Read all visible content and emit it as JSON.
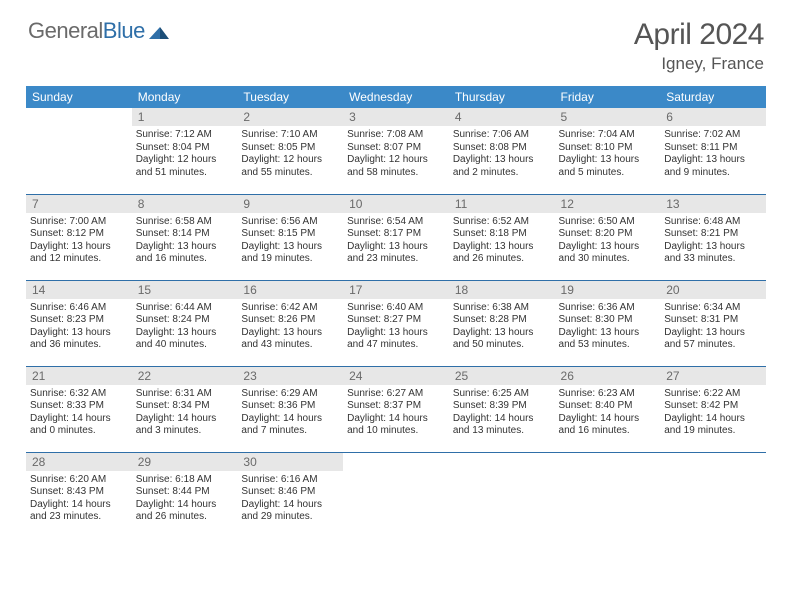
{
  "brand": {
    "part1": "General",
    "part2": "Blue"
  },
  "title": "April 2024",
  "location": "Igney, France",
  "colors": {
    "header_bg": "#3b89c8",
    "header_text": "#ffffff",
    "daynum_bg": "#e7e7e7",
    "daynum_text": "#6a6a6a",
    "rule": "#2f6fa8",
    "brand_gray": "#6a6a6a",
    "brand_blue": "#2f6fa8"
  },
  "weekdays": [
    "Sunday",
    "Monday",
    "Tuesday",
    "Wednesday",
    "Thursday",
    "Friday",
    "Saturday"
  ],
  "start_offset": 1,
  "days": [
    {
      "n": 1,
      "sunrise": "7:12 AM",
      "sunset": "8:04 PM",
      "daylight": "12 hours and 51 minutes."
    },
    {
      "n": 2,
      "sunrise": "7:10 AM",
      "sunset": "8:05 PM",
      "daylight": "12 hours and 55 minutes."
    },
    {
      "n": 3,
      "sunrise": "7:08 AM",
      "sunset": "8:07 PM",
      "daylight": "12 hours and 58 minutes."
    },
    {
      "n": 4,
      "sunrise": "7:06 AM",
      "sunset": "8:08 PM",
      "daylight": "13 hours and 2 minutes."
    },
    {
      "n": 5,
      "sunrise": "7:04 AM",
      "sunset": "8:10 PM",
      "daylight": "13 hours and 5 minutes."
    },
    {
      "n": 6,
      "sunrise": "7:02 AM",
      "sunset": "8:11 PM",
      "daylight": "13 hours and 9 minutes."
    },
    {
      "n": 7,
      "sunrise": "7:00 AM",
      "sunset": "8:12 PM",
      "daylight": "13 hours and 12 minutes."
    },
    {
      "n": 8,
      "sunrise": "6:58 AM",
      "sunset": "8:14 PM",
      "daylight": "13 hours and 16 minutes."
    },
    {
      "n": 9,
      "sunrise": "6:56 AM",
      "sunset": "8:15 PM",
      "daylight": "13 hours and 19 minutes."
    },
    {
      "n": 10,
      "sunrise": "6:54 AM",
      "sunset": "8:17 PM",
      "daylight": "13 hours and 23 minutes."
    },
    {
      "n": 11,
      "sunrise": "6:52 AM",
      "sunset": "8:18 PM",
      "daylight": "13 hours and 26 minutes."
    },
    {
      "n": 12,
      "sunrise": "6:50 AM",
      "sunset": "8:20 PM",
      "daylight": "13 hours and 30 minutes."
    },
    {
      "n": 13,
      "sunrise": "6:48 AM",
      "sunset": "8:21 PM",
      "daylight": "13 hours and 33 minutes."
    },
    {
      "n": 14,
      "sunrise": "6:46 AM",
      "sunset": "8:23 PM",
      "daylight": "13 hours and 36 minutes."
    },
    {
      "n": 15,
      "sunrise": "6:44 AM",
      "sunset": "8:24 PM",
      "daylight": "13 hours and 40 minutes."
    },
    {
      "n": 16,
      "sunrise": "6:42 AM",
      "sunset": "8:26 PM",
      "daylight": "13 hours and 43 minutes."
    },
    {
      "n": 17,
      "sunrise": "6:40 AM",
      "sunset": "8:27 PM",
      "daylight": "13 hours and 47 minutes."
    },
    {
      "n": 18,
      "sunrise": "6:38 AM",
      "sunset": "8:28 PM",
      "daylight": "13 hours and 50 minutes."
    },
    {
      "n": 19,
      "sunrise": "6:36 AM",
      "sunset": "8:30 PM",
      "daylight": "13 hours and 53 minutes."
    },
    {
      "n": 20,
      "sunrise": "6:34 AM",
      "sunset": "8:31 PM",
      "daylight": "13 hours and 57 minutes."
    },
    {
      "n": 21,
      "sunrise": "6:32 AM",
      "sunset": "8:33 PM",
      "daylight": "14 hours and 0 minutes."
    },
    {
      "n": 22,
      "sunrise": "6:31 AM",
      "sunset": "8:34 PM",
      "daylight": "14 hours and 3 minutes."
    },
    {
      "n": 23,
      "sunrise": "6:29 AM",
      "sunset": "8:36 PM",
      "daylight": "14 hours and 7 minutes."
    },
    {
      "n": 24,
      "sunrise": "6:27 AM",
      "sunset": "8:37 PM",
      "daylight": "14 hours and 10 minutes."
    },
    {
      "n": 25,
      "sunrise": "6:25 AM",
      "sunset": "8:39 PM",
      "daylight": "14 hours and 13 minutes."
    },
    {
      "n": 26,
      "sunrise": "6:23 AM",
      "sunset": "8:40 PM",
      "daylight": "14 hours and 16 minutes."
    },
    {
      "n": 27,
      "sunrise": "6:22 AM",
      "sunset": "8:42 PM",
      "daylight": "14 hours and 19 minutes."
    },
    {
      "n": 28,
      "sunrise": "6:20 AM",
      "sunset": "8:43 PM",
      "daylight": "14 hours and 23 minutes."
    },
    {
      "n": 29,
      "sunrise": "6:18 AM",
      "sunset": "8:44 PM",
      "daylight": "14 hours and 26 minutes."
    },
    {
      "n": 30,
      "sunrise": "6:16 AM",
      "sunset": "8:46 PM",
      "daylight": "14 hours and 29 minutes."
    }
  ],
  "labels": {
    "sunrise": "Sunrise:",
    "sunset": "Sunset:",
    "daylight": "Daylight:"
  }
}
